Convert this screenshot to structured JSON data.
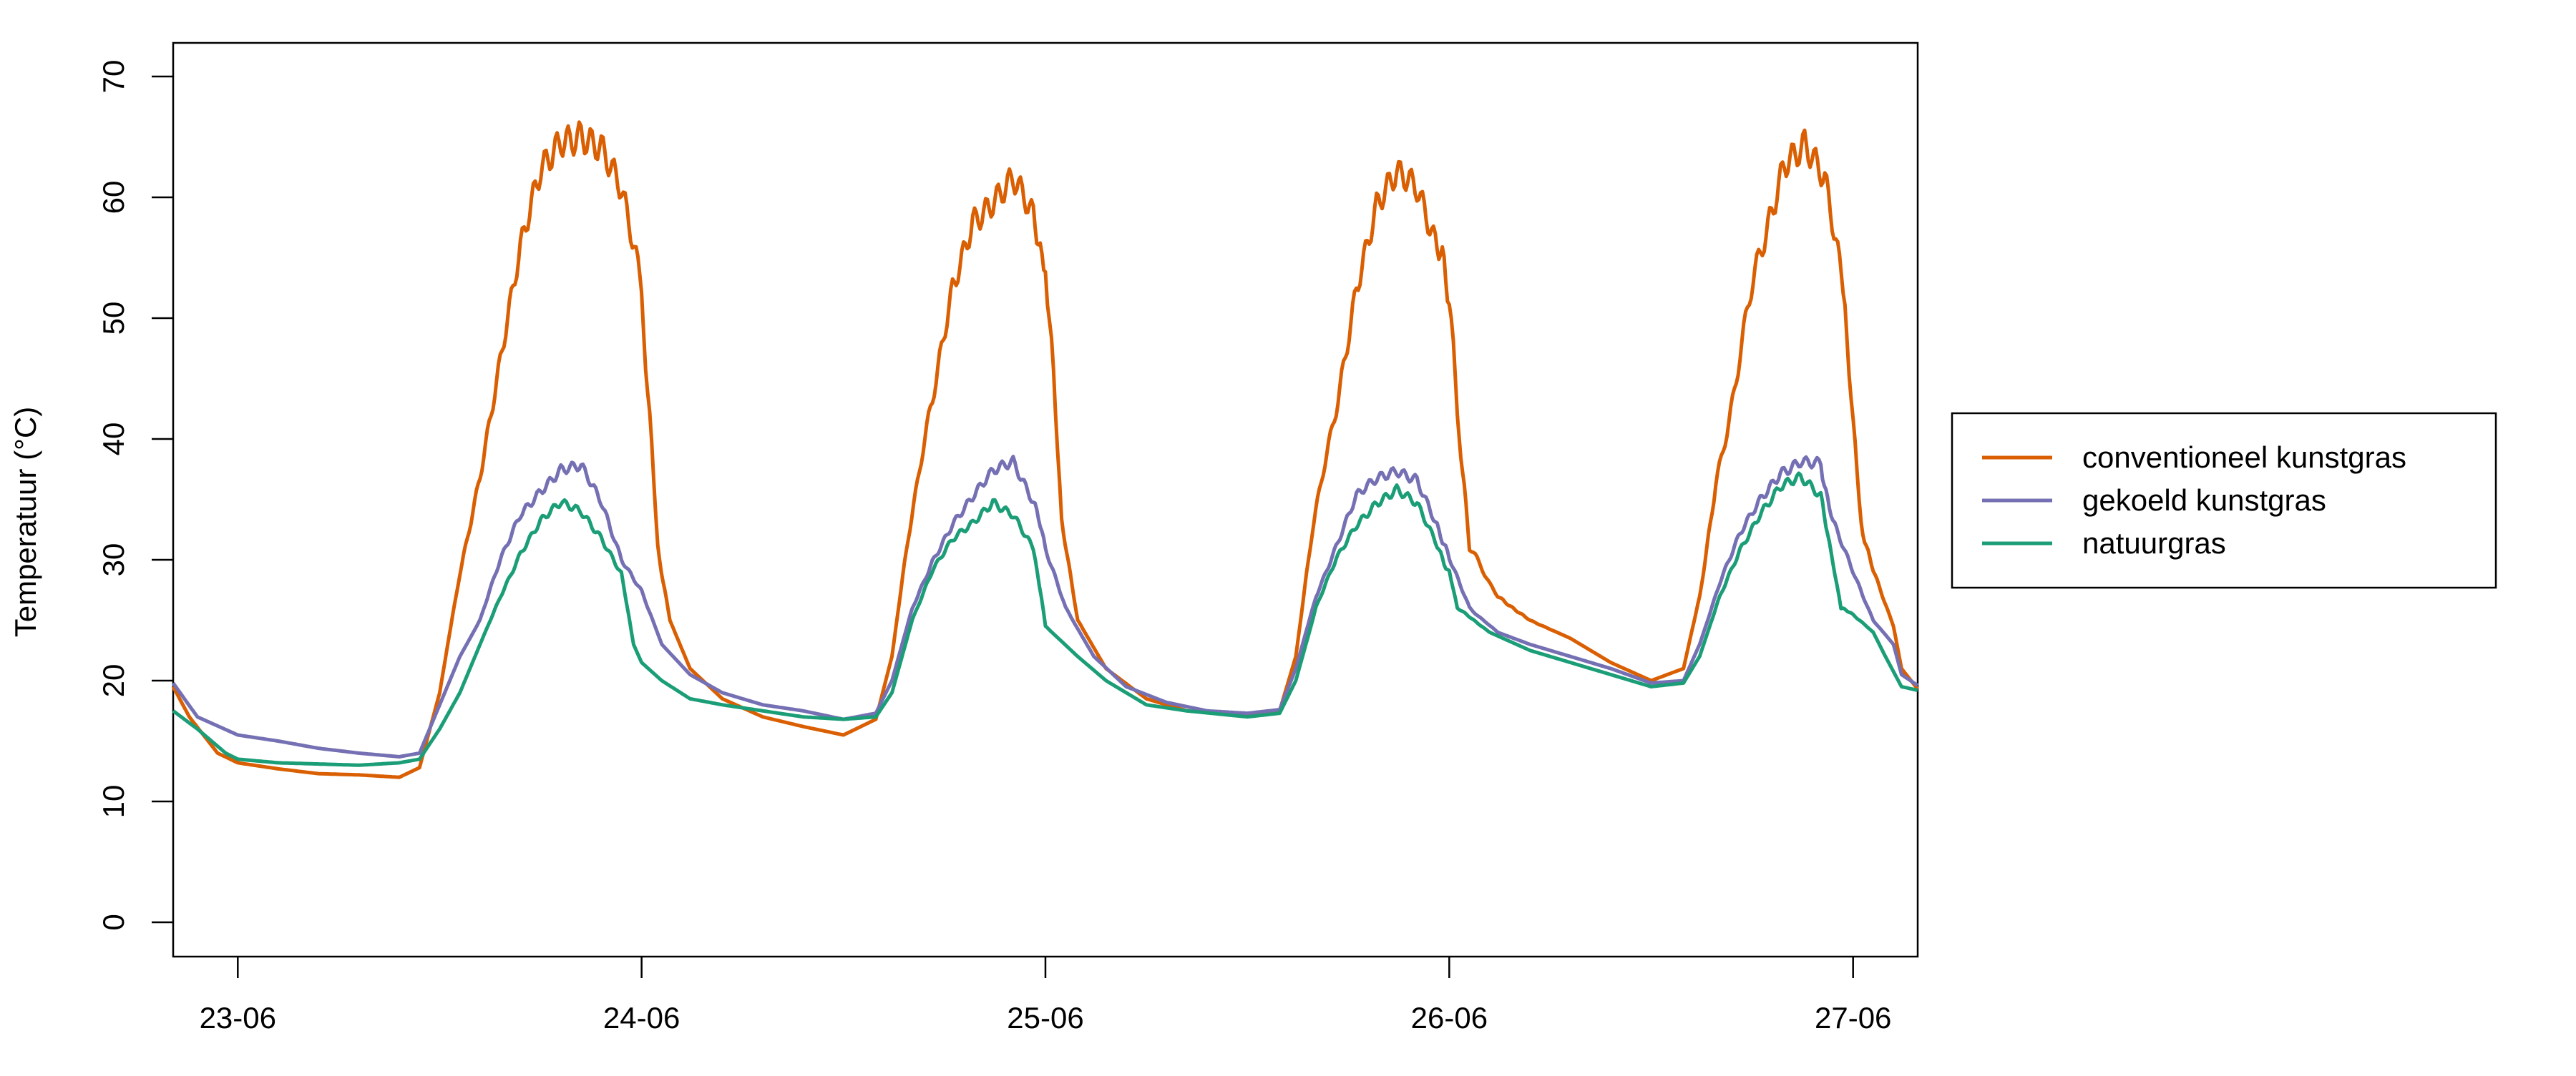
{
  "chart_data": {
    "type": "line",
    "title": "",
    "xlabel": "",
    "ylabel": "Temperatuur (°C)",
    "xlim": [
      -0.16,
      4.16
    ],
    "ylim": [
      0,
      70
    ],
    "x_ticks": [
      {
        "value": 0,
        "label": "23-06"
      },
      {
        "value": 1,
        "label": "24-06"
      },
      {
        "value": 2,
        "label": "25-06"
      },
      {
        "value": 3,
        "label": "26-06"
      },
      {
        "value": 4,
        "label": "27-06"
      }
    ],
    "y_ticks": [
      0,
      10,
      20,
      30,
      40,
      50,
      60,
      70
    ],
    "x_unit": "days from 23-06 00:00",
    "grid": false,
    "legend_position": "right",
    "series": [
      {
        "name": "conventioneel kunstgras",
        "color": "#D95F02",
        "points": [
          [
            -0.16,
            19.5
          ],
          [
            -0.12,
            17
          ],
          [
            -0.05,
            14
          ],
          [
            0.0,
            13.2
          ],
          [
            0.1,
            12.7
          ],
          [
            0.2,
            12.3
          ],
          [
            0.3,
            12.2
          ],
          [
            0.4,
            12.0
          ],
          [
            0.45,
            12.8
          ],
          [
            0.5,
            19
          ],
          [
            0.55,
            29
          ],
          [
            0.6,
            37
          ],
          [
            0.65,
            46
          ],
          [
            0.7,
            55
          ],
          [
            0.75,
            62
          ],
          [
            0.8,
            65.5
          ],
          [
            0.85,
            66.3
          ],
          [
            0.9,
            64.5
          ],
          [
            0.95,
            60
          ],
          [
            1.0,
            52
          ],
          [
            1.02,
            42
          ],
          [
            1.04,
            31
          ],
          [
            1.07,
            25
          ],
          [
            1.12,
            21
          ],
          [
            1.2,
            18.5
          ],
          [
            1.3,
            17.0
          ],
          [
            1.4,
            16.2
          ],
          [
            1.5,
            15.5
          ],
          [
            1.58,
            16.8
          ],
          [
            1.62,
            22
          ],
          [
            1.66,
            32
          ],
          [
            1.72,
            43
          ],
          [
            1.77,
            53
          ],
          [
            1.82,
            59
          ],
          [
            1.87,
            60
          ],
          [
            1.92,
            61
          ],
          [
            1.97,
            57.5
          ],
          [
            2.0,
            55
          ],
          [
            2.02,
            45
          ],
          [
            2.04,
            33
          ],
          [
            2.08,
            25
          ],
          [
            2.15,
            21
          ],
          [
            2.25,
            18.5
          ],
          [
            2.35,
            17.5
          ],
          [
            2.5,
            17.2
          ],
          [
            2.58,
            17.5
          ],
          [
            2.62,
            22
          ],
          [
            2.66,
            32
          ],
          [
            2.72,
            43
          ],
          [
            2.77,
            53
          ],
          [
            2.82,
            59
          ],
          [
            2.87,
            61
          ],
          [
            2.92,
            60
          ],
          [
            2.97,
            56
          ],
          [
            3.0,
            52
          ],
          [
            3.02,
            42
          ],
          [
            3.05,
            31
          ],
          [
            3.12,
            27
          ],
          [
            3.2,
            25
          ],
          [
            3.3,
            23.5
          ],
          [
            3.4,
            21.5
          ],
          [
            3.5,
            20.0
          ],
          [
            3.58,
            21
          ],
          [
            3.62,
            27
          ],
          [
            3.66,
            36
          ],
          [
            3.72,
            47
          ],
          [
            3.78,
            57
          ],
          [
            3.83,
            64
          ],
          [
            3.88,
            65
          ],
          [
            3.93,
            61
          ],
          [
            3.98,
            51
          ],
          [
            4.0,
            41
          ],
          [
            4.02,
            33
          ],
          [
            4.05,
            29
          ],
          [
            4.1,
            24.5
          ],
          [
            4.12,
            21
          ],
          [
            4.16,
            19.3
          ]
        ]
      },
      {
        "name": "gekoeld kunstgras",
        "color": "#7570B3",
        "points": [
          [
            -0.16,
            19.8
          ],
          [
            -0.1,
            17
          ],
          [
            0.0,
            15.5
          ],
          [
            0.1,
            15.0
          ],
          [
            0.2,
            14.4
          ],
          [
            0.3,
            14.0
          ],
          [
            0.4,
            13.7
          ],
          [
            0.45,
            14.0
          ],
          [
            0.5,
            18
          ],
          [
            0.55,
            22
          ],
          [
            0.6,
            25
          ],
          [
            0.65,
            30
          ],
          [
            0.7,
            34
          ],
          [
            0.75,
            36
          ],
          [
            0.8,
            37.5
          ],
          [
            0.85,
            37.5
          ],
          [
            0.9,
            34.5
          ],
          [
            0.95,
            30
          ],
          [
            1.0,
            27.5
          ],
          [
            1.05,
            23
          ],
          [
            1.12,
            20.5
          ],
          [
            1.2,
            19.0
          ],
          [
            1.3,
            18.0
          ],
          [
            1.4,
            17.5
          ],
          [
            1.5,
            16.8
          ],
          [
            1.58,
            17.3
          ],
          [
            1.62,
            20
          ],
          [
            1.67,
            26
          ],
          [
            1.72,
            30
          ],
          [
            1.77,
            33
          ],
          [
            1.82,
            35
          ],
          [
            1.87,
            37
          ],
          [
            1.92,
            38
          ],
          [
            1.97,
            35
          ],
          [
            2.0,
            31
          ],
          [
            2.05,
            26
          ],
          [
            2.12,
            22
          ],
          [
            2.2,
            19.5
          ],
          [
            2.3,
            18.2
          ],
          [
            2.4,
            17.5
          ],
          [
            2.5,
            17.3
          ],
          [
            2.58,
            17.6
          ],
          [
            2.62,
            21
          ],
          [
            2.67,
            27
          ],
          [
            2.72,
            31
          ],
          [
            2.77,
            35
          ],
          [
            2.82,
            36.5
          ],
          [
            2.87,
            37.5
          ],
          [
            2.92,
            37
          ],
          [
            2.97,
            33
          ],
          [
            3.0,
            30
          ],
          [
            3.05,
            26
          ],
          [
            3.12,
            24
          ],
          [
            3.2,
            23
          ],
          [
            3.3,
            22
          ],
          [
            3.4,
            21.0
          ],
          [
            3.5,
            19.8
          ],
          [
            3.58,
            20
          ],
          [
            3.62,
            23
          ],
          [
            3.67,
            28
          ],
          [
            3.72,
            32
          ],
          [
            3.77,
            35
          ],
          [
            3.82,
            37.5
          ],
          [
            3.87,
            38.5
          ],
          [
            3.92,
            38
          ],
          [
            3.95,
            33
          ],
          [
            4.0,
            29
          ],
          [
            4.05,
            25
          ],
          [
            4.1,
            23
          ],
          [
            4.12,
            20.5
          ],
          [
            4.16,
            19.6
          ]
        ]
      },
      {
        "name": "natuurgras",
        "color": "#1B9E77",
        "points": [
          [
            -0.16,
            17.5
          ],
          [
            -0.1,
            16
          ],
          [
            -0.03,
            14
          ],
          [
            0.0,
            13.5
          ],
          [
            0.1,
            13.2
          ],
          [
            0.2,
            13.1
          ],
          [
            0.3,
            13.0
          ],
          [
            0.4,
            13.2
          ],
          [
            0.45,
            13.5
          ],
          [
            0.5,
            16
          ],
          [
            0.55,
            19
          ],
          [
            0.6,
            23
          ],
          [
            0.65,
            27
          ],
          [
            0.7,
            30.5
          ],
          [
            0.75,
            33
          ],
          [
            0.8,
            34.5
          ],
          [
            0.85,
            34
          ],
          [
            0.9,
            32
          ],
          [
            0.95,
            29
          ],
          [
            0.98,
            23
          ],
          [
            1.0,
            21.5
          ],
          [
            1.05,
            20
          ],
          [
            1.12,
            18.5
          ],
          [
            1.2,
            18
          ],
          [
            1.3,
            17.5
          ],
          [
            1.4,
            17
          ],
          [
            1.5,
            16.8
          ],
          [
            1.58,
            17
          ],
          [
            1.62,
            19
          ],
          [
            1.67,
            25
          ],
          [
            1.72,
            29
          ],
          [
            1.77,
            31.5
          ],
          [
            1.82,
            33
          ],
          [
            1.87,
            35
          ],
          [
            1.92,
            34
          ],
          [
            1.97,
            31
          ],
          [
            1.99,
            27
          ],
          [
            2.0,
            24.5
          ],
          [
            2.08,
            22
          ],
          [
            2.15,
            20
          ],
          [
            2.25,
            18
          ],
          [
            2.35,
            17.5
          ],
          [
            2.5,
            17.0
          ],
          [
            2.58,
            17.3
          ],
          [
            2.62,
            20
          ],
          [
            2.67,
            26
          ],
          [
            2.72,
            30
          ],
          [
            2.77,
            33
          ],
          [
            2.82,
            35
          ],
          [
            2.87,
            36
          ],
          [
            2.92,
            34.5
          ],
          [
            2.97,
            31
          ],
          [
            3.0,
            29
          ],
          [
            3.02,
            26
          ],
          [
            3.1,
            24
          ],
          [
            3.2,
            22.5
          ],
          [
            3.3,
            21.5
          ],
          [
            3.4,
            20.5
          ],
          [
            3.5,
            19.5
          ],
          [
            3.58,
            19.8
          ],
          [
            3.62,
            22
          ],
          [
            3.67,
            27
          ],
          [
            3.72,
            31
          ],
          [
            3.77,
            34
          ],
          [
            3.82,
            36
          ],
          [
            3.87,
            36.5
          ],
          [
            3.92,
            35
          ],
          [
            3.95,
            30
          ],
          [
            3.97,
            26
          ],
          [
            4.0,
            25.5
          ],
          [
            4.05,
            24
          ],
          [
            4.08,
            22
          ],
          [
            4.12,
            19.5
          ],
          [
            4.16,
            19.2
          ]
        ]
      }
    ]
  }
}
